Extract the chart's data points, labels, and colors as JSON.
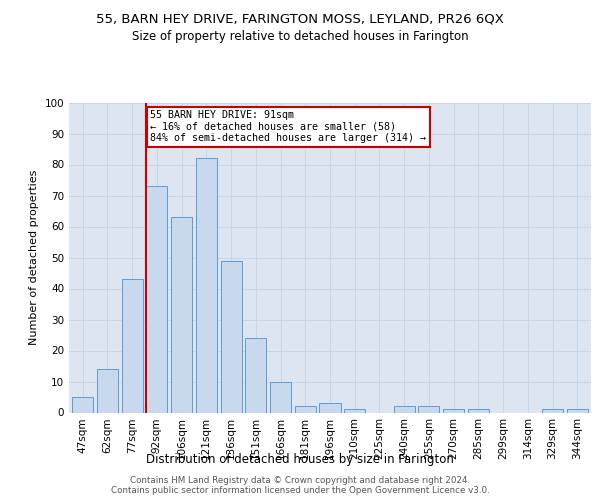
{
  "title": "55, BARN HEY DRIVE, FARINGTON MOSS, LEYLAND, PR26 6QX",
  "subtitle": "Size of property relative to detached houses in Farington",
  "xlabel": "Distribution of detached houses by size in Farington",
  "ylabel": "Number of detached properties",
  "bar_labels": [
    "47sqm",
    "62sqm",
    "77sqm",
    "92sqm",
    "106sqm",
    "121sqm",
    "136sqm",
    "151sqm",
    "166sqm",
    "181sqm",
    "196sqm",
    "210sqm",
    "225sqm",
    "240sqm",
    "255sqm",
    "270sqm",
    "285sqm",
    "299sqm",
    "314sqm",
    "329sqm",
    "344sqm"
  ],
  "bar_values": [
    5,
    14,
    43,
    73,
    63,
    82,
    49,
    24,
    10,
    2,
    3,
    1,
    0,
    2,
    2,
    1,
    1,
    0,
    0,
    1,
    1
  ],
  "bar_color": "#c9d9ed",
  "bar_edge_color": "#5b9bd5",
  "annotation_text_line1": "55 BARN HEY DRIVE: 91sqm",
  "annotation_text_line2": "← 16% of detached houses are smaller (58)",
  "annotation_text_line3": "84% of semi-detached houses are larger (314) →",
  "annotation_box_color": "#ffffff",
  "annotation_border_color": "#cc0000",
  "vline_color": "#cc0000",
  "grid_color": "#c8d4e8",
  "background_color": "#dde5f0",
  "footer_line1": "Contains HM Land Registry data © Crown copyright and database right 2024.",
  "footer_line2": "Contains public sector information licensed under the Open Government Licence v3.0.",
  "ylim": [
    0,
    100
  ],
  "title_fontsize": 9.5,
  "subtitle_fontsize": 8.5,
  "vline_index": 3.5
}
